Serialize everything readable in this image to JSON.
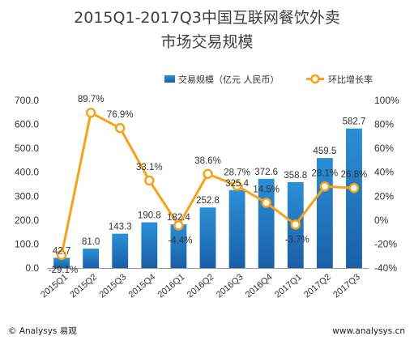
{
  "chart_data": {
    "type": "bar",
    "title_line1": "2015Q1-2017Q3中国互联网餐饮外卖",
    "title_line2": "市场交易规模",
    "categories": [
      "2015Q1",
      "2015Q2",
      "2015Q3",
      "2015Q4",
      "2016Q1",
      "2016Q2",
      "2016Q3",
      "2016Q4",
      "2017Q1",
      "2017Q2",
      "2017Q3"
    ],
    "series": [
      {
        "name": "交易规模（亿元 人民币）",
        "type": "bar",
        "axis": "left",
        "values": [
          42.7,
          81.0,
          143.3,
          190.8,
          182.4,
          252.8,
          325.4,
          372.6,
          358.8,
          459.5,
          582.7
        ],
        "labels": [
          "42.7",
          "81.0",
          "143.3",
          "190.8",
          "182.4",
          "252.8",
          "325.4",
          "372.6",
          "358.8",
          "459.5",
          "582.7"
        ]
      },
      {
        "name": "环比增长率",
        "type": "line",
        "axis": "right",
        "values": [
          -29.1,
          89.7,
          76.9,
          33.1,
          -4.4,
          38.6,
          28.7,
          14.5,
          -3.7,
          28.1,
          26.8
        ],
        "labels": [
          "-29.1%",
          "89.7%",
          "76.9%",
          "33.1%",
          "-4.4%",
          "38.6%",
          "28.7%",
          "14.5%",
          "-3.7%",
          "28.1%",
          "26.8%"
        ]
      }
    ],
    "y_left": {
      "range": [
        0,
        700
      ],
      "ticks": [
        "0.0",
        "100.0",
        "200.0",
        "300.0",
        "400.0",
        "500.0",
        "600.0",
        "700.0"
      ]
    },
    "y_right": {
      "range": [
        -40,
        100
      ],
      "ticks": [
        "-40%",
        "-20%",
        "0%",
        "20%",
        "40%",
        "60%",
        "80%",
        "100%"
      ]
    },
    "colors": {
      "bar_top": "#2b8fd6",
      "bar_bottom": "#1a5fa8",
      "line": "#f7a21b",
      "marker_fill": "#ffffff"
    },
    "legend_position": "top",
    "grid": false
  },
  "footer": {
    "left": "© Analysys 易观",
    "right": "www.analysys.cn"
  }
}
